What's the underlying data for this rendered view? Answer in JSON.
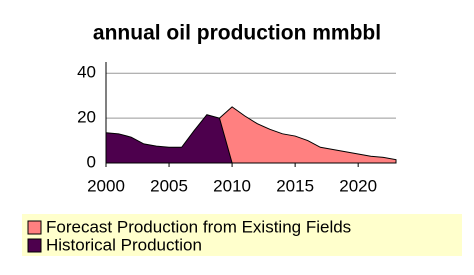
{
  "chart_data": {
    "type": "area",
    "title": "annual oil production mmbbl",
    "xlim": [
      2000,
      2023
    ],
    "xticks": [
      2000,
      2005,
      2010,
      2015,
      2020
    ],
    "ylim": [
      0,
      45
    ],
    "yticks": [
      0,
      20,
      40
    ],
    "grid": true,
    "series": [
      {
        "name": "Forecast Production from Existing Fields",
        "color": "#ff8080",
        "x": [
          2009,
          2010,
          2011,
          2012,
          2013,
          2014,
          2015,
          2016,
          2017,
          2018,
          2019,
          2020,
          2021,
          2022,
          2023
        ],
        "values": [
          20,
          25,
          21,
          17.5,
          15,
          13,
          12,
          10,
          7,
          6,
          5,
          4,
          3,
          2.5,
          1.5
        ]
      },
      {
        "name": "Historical Production",
        "color": "#4d004d",
        "x": [
          2000,
          2001,
          2002,
          2003,
          2004,
          2005,
          2006,
          2007,
          2008,
          2009,
          2010
        ],
        "values": [
          13.5,
          13,
          11.5,
          8.5,
          7.5,
          7,
          7,
          14.5,
          21.5,
          20,
          0
        ]
      }
    ]
  }
}
